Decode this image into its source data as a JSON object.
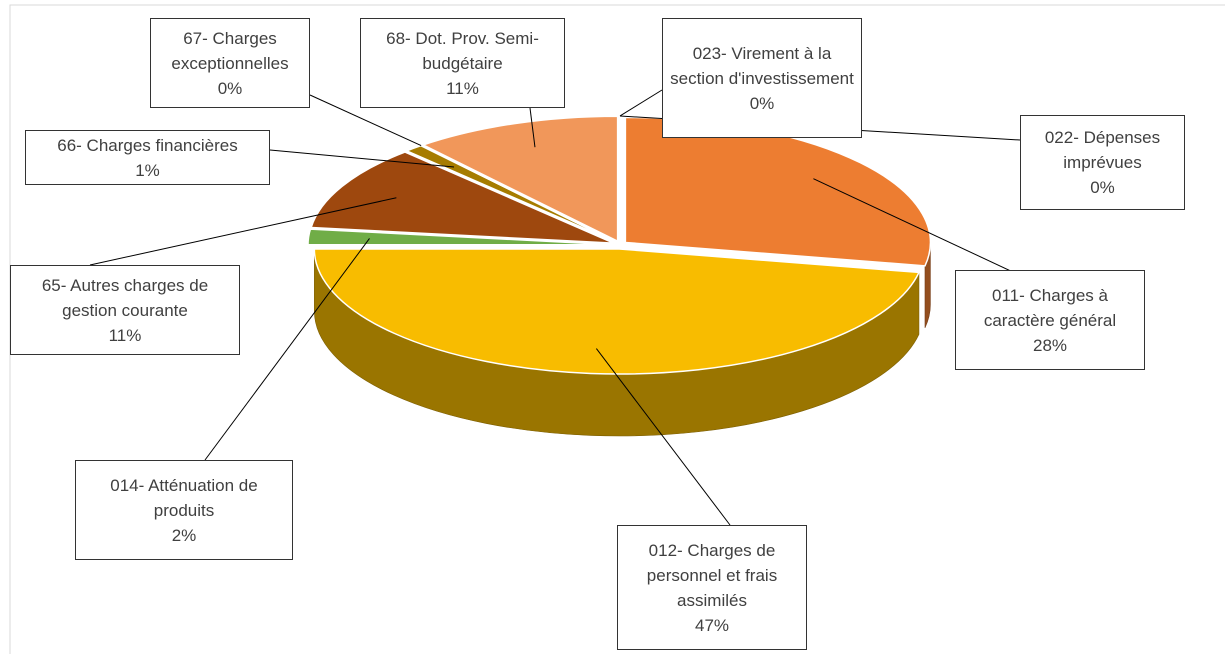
{
  "chart_data": {
    "type": "pie",
    "three_d": true,
    "categories": [
      "011- Charges à caractère général",
      "012- Charges de personnel et frais assimilés",
      "014- Atténuation de produits",
      "65- Autres charges de gestion courante",
      "66- Charges financières",
      "67- Charges exceptionnelles",
      "68- Dot. Prov. Semi-budgétaire",
      "022- Dépenses imprévues",
      "023- Virement à la section d'investissement"
    ],
    "values": [
      28,
      47,
      2,
      11,
      1,
      0,
      11,
      0,
      0
    ],
    "value_labels": [
      "28%",
      "47%",
      "2%",
      "11%",
      "1%",
      "0%",
      "11%",
      "0%",
      "0%"
    ],
    "colors": [
      "#ED7D31",
      "#F8BC00",
      "#70AD47",
      "#9E480E",
      "#A67C00",
      "#5A7D34",
      "#F1975A",
      "#C55A11",
      "#FFC000"
    ]
  }
}
